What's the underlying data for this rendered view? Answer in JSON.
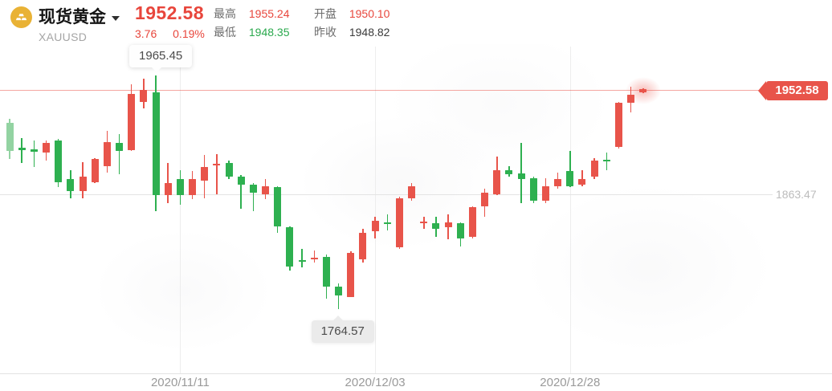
{
  "colors": {
    "up": "#e8544a",
    "down": "#2eb050",
    "down_faded": "#93d3a2",
    "red_text": "#e8463c",
    "green_text": "#2aa94d",
    "price_line": "rgba(233,80,70,0.5)",
    "tag_bg": "#e8544a",
    "coin_gold": "#e9b235"
  },
  "header": {
    "title": "现货黄金",
    "symbol": "XAUUSD",
    "icon": "gold-ingots-coin",
    "dropdown_icon": "caret-down",
    "price": "1952.58",
    "change": "3.76",
    "change_pct": "0.19%",
    "change_trend": "up",
    "stats": [
      {
        "label": "最高",
        "value": "1955.24",
        "trend": "up"
      },
      {
        "label": "最低",
        "value": "1948.35",
        "trend": "down"
      },
      {
        "label": "开盘",
        "value": "1950.10",
        "trend": "up"
      },
      {
        "label": "昨收",
        "value": "1948.82",
        "trend": "flat"
      }
    ]
  },
  "chart_data": {
    "type": "candlestick",
    "instrument": "现货黄金 XAUUSD",
    "price_convention": "red = up, green = down (CN style)",
    "current_price": 1952.58,
    "current_price_label": "1952.58",
    "high_label": "1965.45",
    "low_label": "1764.57",
    "gridline_price": 1863.47,
    "gridline_price_label": "1863.47",
    "y_visible_range": [
      1755,
      1975
    ],
    "grid": "light vertical lines at date ticks, one horizontal gridline, dashed-none",
    "legend_position": "none",
    "high_annotation_candle_index": 12,
    "low_annotation_candle_index": 27,
    "x_axis": [
      {
        "label": "2020/11/11",
        "candle_index": 14
      },
      {
        "label": "2020/12/03",
        "candle_index": 30
      },
      {
        "label": "2020/12/28",
        "candle_index": 46
      }
    ],
    "candles": [
      {
        "o": 1924.9,
        "h": 1928.4,
        "l": 1893.9,
        "c": 1900.8,
        "d": "d",
        "f": true
      },
      {
        "o": 1903.5,
        "h": 1911.8,
        "l": 1890.4,
        "c": 1901.5,
        "d": "d"
      },
      {
        "o": 1902.1,
        "h": 1909.7,
        "l": 1887.0,
        "c": 1900.0,
        "d": "d"
      },
      {
        "o": 1899.4,
        "h": 1909.7,
        "l": 1892.5,
        "c": 1907.7,
        "d": "u"
      },
      {
        "o": 1909.7,
        "h": 1911.1,
        "l": 1869.7,
        "c": 1873.8,
        "d": "d"
      },
      {
        "o": 1876.6,
        "h": 1884.2,
        "l": 1860.0,
        "c": 1866.2,
        "d": "d"
      },
      {
        "o": 1866.2,
        "h": 1891.1,
        "l": 1860.0,
        "c": 1878.7,
        "d": "u"
      },
      {
        "o": 1873.8,
        "h": 1894.6,
        "l": 1873.1,
        "c": 1893.9,
        "d": "u"
      },
      {
        "o": 1887.7,
        "h": 1918.1,
        "l": 1882.1,
        "c": 1908.4,
        "d": "u"
      },
      {
        "o": 1907.7,
        "h": 1915.3,
        "l": 1880.7,
        "c": 1900.8,
        "d": "d"
      },
      {
        "o": 1901.5,
        "h": 1958.1,
        "l": 1900.8,
        "c": 1949.8,
        "d": "u"
      },
      {
        "o": 1942.9,
        "h": 1962.9,
        "l": 1937.4,
        "c": 1953.3,
        "d": "u"
      },
      {
        "o": 1951.2,
        "h": 1965.45,
        "l": 1849.0,
        "c": 1862.8,
        "d": "d"
      },
      {
        "o": 1862.8,
        "h": 1890.4,
        "l": 1855.9,
        "c": 1873.1,
        "d": "u"
      },
      {
        "o": 1876.6,
        "h": 1884.2,
        "l": 1854.5,
        "c": 1862.8,
        "d": "d"
      },
      {
        "o": 1862.8,
        "h": 1883.5,
        "l": 1859.3,
        "c": 1876.6,
        "d": "u"
      },
      {
        "o": 1875.2,
        "h": 1897.3,
        "l": 1860.0,
        "c": 1887.0,
        "d": "u"
      },
      {
        "o": 1888.3,
        "h": 1898.0,
        "l": 1863.5,
        "c": 1889.7,
        "d": "u"
      },
      {
        "o": 1890.4,
        "h": 1892.5,
        "l": 1876.6,
        "c": 1878.7,
        "d": "d"
      },
      {
        "o": 1878.7,
        "h": 1880.1,
        "l": 1851.1,
        "c": 1871.8,
        "d": "d"
      },
      {
        "o": 1871.8,
        "h": 1873.1,
        "l": 1849.0,
        "c": 1864.9,
        "d": "d"
      },
      {
        "o": 1863.5,
        "h": 1876.6,
        "l": 1859.3,
        "c": 1870.4,
        "d": "u"
      },
      {
        "o": 1869.7,
        "h": 1870.4,
        "l": 1830.3,
        "c": 1835.8,
        "d": "d"
      },
      {
        "o": 1835.1,
        "h": 1835.8,
        "l": 1797.8,
        "c": 1801.3,
        "d": "d"
      },
      {
        "o": 1806.8,
        "h": 1816.5,
        "l": 1800.6,
        "c": 1805.4,
        "d": "d"
      },
      {
        "o": 1807.5,
        "h": 1815.1,
        "l": 1804.7,
        "c": 1808.9,
        "d": "u"
      },
      {
        "o": 1809.6,
        "h": 1811.6,
        "l": 1773.7,
        "c": 1784.0,
        "d": "d"
      },
      {
        "o": 1784.0,
        "h": 1786.8,
        "l": 1764.57,
        "c": 1776.4,
        "d": "d"
      },
      {
        "o": 1775.0,
        "h": 1814.4,
        "l": 1775.0,
        "c": 1813.0,
        "d": "u"
      },
      {
        "o": 1807.5,
        "h": 1833.7,
        "l": 1804.7,
        "c": 1830.3,
        "d": "u"
      },
      {
        "o": 1831.6,
        "h": 1844.1,
        "l": 1825.5,
        "c": 1840.6,
        "d": "u"
      },
      {
        "o": 1839.2,
        "h": 1846.1,
        "l": 1832.3,
        "c": 1837.8,
        "d": "d"
      },
      {
        "o": 1817.9,
        "h": 1861.4,
        "l": 1816.5,
        "c": 1860.0,
        "d": "u"
      },
      {
        "o": 1860.0,
        "h": 1873.1,
        "l": 1858.0,
        "c": 1870.4,
        "d": "u"
      },
      {
        "o": 1838.6,
        "h": 1844.1,
        "l": 1833.7,
        "c": 1840.0,
        "d": "u"
      },
      {
        "o": 1838.6,
        "h": 1844.1,
        "l": 1826.9,
        "c": 1833.7,
        "d": "d"
      },
      {
        "o": 1835.1,
        "h": 1846.1,
        "l": 1824.8,
        "c": 1839.2,
        "d": "u"
      },
      {
        "o": 1838.6,
        "h": 1839.2,
        "l": 1818.6,
        "c": 1825.5,
        "d": "d"
      },
      {
        "o": 1826.9,
        "h": 1853.1,
        "l": 1825.5,
        "c": 1852.4,
        "d": "u"
      },
      {
        "o": 1853.1,
        "h": 1868.3,
        "l": 1844.1,
        "c": 1864.9,
        "d": "u"
      },
      {
        "o": 1863.5,
        "h": 1895.9,
        "l": 1862.8,
        "c": 1884.2,
        "d": "u"
      },
      {
        "o": 1884.2,
        "h": 1887.7,
        "l": 1878.7,
        "c": 1880.7,
        "d": "d"
      },
      {
        "o": 1881.4,
        "h": 1907.7,
        "l": 1855.9,
        "c": 1876.6,
        "d": "d"
      },
      {
        "o": 1877.3,
        "h": 1878.7,
        "l": 1855.9,
        "c": 1858.0,
        "d": "d"
      },
      {
        "o": 1858.0,
        "h": 1877.3,
        "l": 1855.9,
        "c": 1870.4,
        "d": "u"
      },
      {
        "o": 1870.4,
        "h": 1882.1,
        "l": 1868.3,
        "c": 1876.6,
        "d": "u"
      },
      {
        "o": 1883.5,
        "h": 1900.8,
        "l": 1869.7,
        "c": 1870.4,
        "d": "d"
      },
      {
        "o": 1871.8,
        "h": 1884.2,
        "l": 1870.4,
        "c": 1876.6,
        "d": "u"
      },
      {
        "o": 1878.7,
        "h": 1894.6,
        "l": 1876.6,
        "c": 1892.5,
        "d": "u"
      },
      {
        "o": 1893.2,
        "h": 1899.4,
        "l": 1884.2,
        "c": 1891.8,
        "d": "d"
      },
      {
        "o": 1904.2,
        "h": 1942.9,
        "l": 1902.8,
        "c": 1942.2,
        "d": "u"
      },
      {
        "o": 1942.2,
        "h": 1956.0,
        "l": 1934.0,
        "c": 1949.1,
        "d": "u"
      },
      {
        "o": 1951.2,
        "h": 1954.7,
        "l": 1950.5,
        "c": 1954.0,
        "d": "u",
        "glow": true
      }
    ]
  }
}
